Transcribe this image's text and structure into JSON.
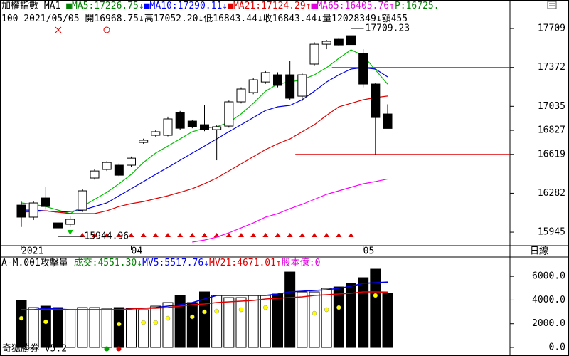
{
  "chart_data": [
    {
      "type": "candlestick",
      "header": [
        {
          "text": "加權指數 MA1 ",
          "color": "#000000"
        },
        {
          "text": "■MA5:17226.75↓",
          "color": "#008000"
        },
        {
          "text": "■MA10:17290.11↓",
          "color": "#0000ff"
        },
        {
          "text": "■MA21:17124.29↑",
          "color": "#e00000"
        },
        {
          "text": "■MA65:16405.76↑",
          "color": "#e000e0"
        },
        {
          "text": "P:16725.",
          "color": "#008000"
        }
      ],
      "subheader": "100 2021/05/05 開16968.75↓高17052.20↓低16843.44↓收16843.44↓量12028349↓額455",
      "period": "日線",
      "footer": "奇狐勝券 v5.2",
      "categories": [
        "2021",
        null,
        null,
        null,
        null,
        null,
        null,
        null,
        null,
        "04",
        null,
        null,
        null,
        null,
        null,
        null,
        null,
        null,
        null,
        null,
        null,
        null,
        null,
        null,
        null,
        null,
        null,
        null,
        "05",
        null,
        null
      ],
      "open": [
        16179,
        16075,
        16241,
        16025,
        16013,
        16136,
        16414,
        16488,
        16525,
        16525,
        16722,
        16784,
        16784,
        16981,
        16907,
        16876,
        16833,
        16864,
        17074,
        17154,
        17246,
        17308,
        17308,
        17123,
        17401,
        17573,
        17616,
        17647,
        17493,
        17228,
        16968.75
      ],
      "high": [
        16210,
        16215,
        16340,
        16045,
        16080,
        16315,
        16490,
        16560,
        16540,
        16600,
        16755,
        16830,
        16945,
        16995,
        16920,
        17043,
        16870,
        17085,
        17200,
        17280,
        17340,
        17330,
        17431,
        17320,
        17590,
        17610,
        17630,
        17709.23,
        17530,
        17240,
        17052.2
      ],
      "low": [
        15990,
        16050,
        16140,
        15944.96,
        15990,
        16120,
        16400,
        16475,
        16430,
        16510,
        16710,
        16770,
        16775,
        16830,
        16845,
        16820,
        16568,
        16850,
        17060,
        17140,
        17230,
        17200,
        17090,
        17080,
        17390,
        17530,
        17555,
        17560,
        17200,
        16619,
        16843.44
      ],
      "close": [
        16075,
        16198,
        16167,
        15982,
        16056,
        16303,
        16475,
        16549,
        16438,
        16586,
        16741,
        16815,
        16926,
        16845,
        16858,
        16833,
        16858,
        17074,
        17185,
        17265,
        17327,
        17216,
        17105,
        17308,
        17573,
        17598,
        17567,
        17570,
        17228,
        16938,
        16843.44
      ],
      "series": [
        {
          "color": "#00c000",
          "values": [
            16198,
            16186,
            16167,
            16136,
            16106,
            16167,
            16229,
            16290,
            16364,
            16445,
            16549,
            16630,
            16691,
            16753,
            16815,
            16845,
            16858,
            16895,
            16969,
            17061,
            17166,
            17228,
            17246,
            17265,
            17308,
            17370,
            17450,
            17524,
            17475,
            17351,
            17226.75
          ]
        },
        {
          "color": "#0000e0",
          "values": [
            16136,
            16136,
            16130,
            16118,
            16124,
            16136,
            16167,
            16198,
            16260,
            16321,
            16383,
            16445,
            16506,
            16568,
            16630,
            16691,
            16753,
            16815,
            16876,
            16938,
            16999,
            17031,
            17043,
            17092,
            17166,
            17246,
            17308,
            17358,
            17370,
            17358,
            17290.11
          ]
        },
        {
          "color": "#e00000",
          "values": [
            16118,
            16124,
            16130,
            16118,
            16106,
            16106,
            16106,
            16130,
            16167,
            16192,
            16210,
            16235,
            16260,
            16290,
            16321,
            16364,
            16414,
            16475,
            16537,
            16599,
            16660,
            16710,
            16753,
            16815,
            16876,
            16957,
            17031,
            17061,
            17092,
            17111,
            17124.29
          ]
        },
        {
          "color": "#ff00ff",
          "values": [
            null,
            null,
            null,
            null,
            null,
            null,
            null,
            null,
            null,
            null,
            null,
            null,
            null,
            null,
            15859,
            15877,
            15902,
            15939,
            15982,
            16025,
            16075,
            16106,
            16149,
            16186,
            16229,
            16272,
            16303,
            16334,
            16364,
            16383,
            16405.76
          ]
        }
      ],
      "hlines": [
        17372,
        16619
      ],
      "ylim": [
        15859,
        17771
      ],
      "yticks": [
        17709,
        17372,
        17035,
        16827,
        16619,
        16282,
        15945
      ]
    },
    {
      "type": "bar",
      "header": [
        {
          "text": "A-M.001攻擊量 ",
          "color": "#000000"
        },
        {
          "text": "成交:4551.30↓",
          "color": "#008000"
        },
        {
          "text": "MV5:5517.76↓",
          "color": "#0000ff"
        },
        {
          "text": "MV21:4671.01↑",
          "color": "#e00000"
        },
        {
          "text": "股本億:0",
          "color": "#e000e0"
        }
      ],
      "values": [
        3964,
        3363,
        3483,
        3363,
        3183,
        3363,
        3363,
        3303,
        3363,
        3303,
        3183,
        3483,
        3784,
        4384,
        3784,
        4685,
        4384,
        4204,
        4204,
        4384,
        4384,
        4505,
        6366,
        4685,
        4685,
        4985,
        5105,
        5405,
        5886,
        6607,
        4551.3
      ],
      "series": [
        {
          "color": "#0000e0",
          "values": [
            3183,
            3183,
            3303,
            3243,
            3183,
            3183,
            3183,
            3183,
            3183,
            3243,
            3303,
            3363,
            3483,
            3604,
            3784,
            4084,
            4384,
            4384,
            4384,
            4384,
            4384,
            4505,
            4685,
            4745,
            4805,
            4865,
            4985,
            5165,
            5405,
            5465,
            5517.76
          ]
        },
        {
          "color": "#e00000",
          "values": [
            3183,
            3183,
            3183,
            3183,
            3183,
            3183,
            3183,
            3183,
            3183,
            3243,
            3303,
            3303,
            3363,
            3483,
            3604,
            3664,
            3784,
            3844,
            3904,
            3964,
            4084,
            4144,
            4204,
            4264,
            4384,
            4444,
            4505,
            4565,
            4685,
            4685,
            4671.01
          ]
        }
      ],
      "dots": {
        "color": "#ffff00",
        "values": [
          2462,
          null,
          2162,
          null,
          null,
          null,
          null,
          null,
          1982,
          null,
          2102,
          2102,
          2462,
          null,
          2583,
          3003,
          3063,
          null,
          3183,
          null,
          3363,
          null,
          null,
          null,
          2883,
          3183,
          3363,
          null,
          null,
          4384,
          null
        ]
      },
      "ylim": [
        -420,
        6790
      ],
      "yticks": [
        {
          "value": 6000,
          "label": "6000.0"
        },
        {
          "value": 4000,
          "label": "4000.0"
        },
        {
          "value": 2000,
          "label": "2000.0"
        },
        {
          "value": 0,
          "label": "0.0"
        }
      ]
    }
  ]
}
